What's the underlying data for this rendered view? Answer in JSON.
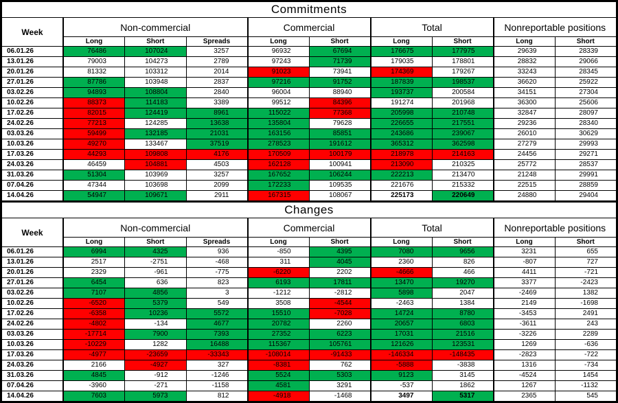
{
  "colors": {
    "positive": "#00B050",
    "negative": "#FF0000",
    "grid": "#000000",
    "text": "#000000",
    "background": "#FFFFFF"
  },
  "color_rule": {
    "threshold": 4000,
    "colored_columns": 7
  },
  "headers": {
    "week": "Week",
    "groups": [
      {
        "label": "Non-commercial",
        "subcols": [
          "Long",
          "Short",
          "Spreads"
        ]
      },
      {
        "label": "Commercial",
        "subcols": [
          "Long",
          "Short"
        ]
      },
      {
        "label": "Total",
        "subcols": [
          "Long",
          "Short"
        ]
      },
      {
        "label": "Nonreportable positions",
        "subcols": [
          "Long",
          "Short"
        ]
      }
    ]
  },
  "commitments": {
    "title": "Commitments",
    "rows": [
      {
        "week": "06.01.26",
        "values": [
          76486,
          107024,
          3257,
          96932,
          67694,
          176675,
          177975,
          29639,
          28339
        ]
      },
      {
        "week": "13.01.26",
        "values": [
          79003,
          104273,
          2789,
          97243,
          71739,
          179035,
          178801,
          28832,
          29066
        ]
      },
      {
        "week": "20.01.26",
        "values": [
          81332,
          103312,
          2014,
          91023,
          73941,
          174369,
          179267,
          33243,
          28345
        ]
      },
      {
        "week": "27.01.26",
        "values": [
          87786,
          103948,
          2837,
          97216,
          91752,
          187839,
          198537,
          36620,
          25922
        ]
      },
      {
        "week": "03.02.26",
        "values": [
          94893,
          108804,
          2840,
          96004,
          88940,
          193737,
          200584,
          34151,
          27304
        ]
      },
      {
        "week": "10.02.26",
        "values": [
          88373,
          114183,
          3389,
          99512,
          84396,
          191274,
          201968,
          36300,
          25606
        ]
      },
      {
        "week": "17.02.26",
        "values": [
          82015,
          124419,
          8961,
          115022,
          77368,
          205998,
          210748,
          32847,
          28097
        ]
      },
      {
        "week": "24.02.26",
        "values": [
          77213,
          124285,
          13638,
          135804,
          79628,
          226655,
          217551,
          29236,
          28340
        ]
      },
      {
        "week": "03.03.26",
        "values": [
          59499,
          132185,
          21031,
          163156,
          85851,
          243686,
          239067,
          26010,
          30629
        ]
      },
      {
        "week": "10.03.26",
        "values": [
          49270,
          133467,
          37519,
          278523,
          191612,
          365312,
          362598,
          27279,
          29993
        ]
      },
      {
        "week": "17.03.26",
        "values": [
          44293,
          109808,
          4176,
          170509,
          100179,
          218978,
          214163,
          24456,
          29271
        ]
      },
      {
        "week": "24.03.26",
        "values": [
          46459,
          104881,
          4503,
          162128,
          100941,
          213090,
          210325,
          25772,
          28537
        ]
      },
      {
        "week": "31.03.26",
        "values": [
          51304,
          103969,
          3257,
          167652,
          106244,
          222213,
          213470,
          21248,
          29991
        ]
      },
      {
        "week": "07.04.26",
        "values": [
          47344,
          103698,
          2099,
          172233,
          109535,
          221676,
          215332,
          22515,
          28859
        ]
      },
      {
        "week": "14.04.26",
        "values": [
          54947,
          109671,
          2911,
          167315,
          108067,
          225173,
          220649,
          24880,
          29404
        ]
      }
    ]
  },
  "changes": {
    "title": "Changes",
    "rows": [
      {
        "week": "06.01.26",
        "values": [
          6994,
          4325,
          936,
          -850,
          4395,
          7080,
          9656,
          3231,
          655
        ]
      },
      {
        "week": "13.01.26",
        "values": [
          2517,
          -2751,
          -468,
          311,
          4045,
          2360,
          826,
          -807,
          727
        ]
      },
      {
        "week": "20.01.26",
        "values": [
          2329,
          -961,
          -775,
          -6220,
          2202,
          -4666,
          466,
          4411,
          -721
        ]
      },
      {
        "week": "27.01.26",
        "values": [
          6454,
          636,
          823,
          6193,
          17811,
          13470,
          19270,
          3377,
          -2423
        ]
      },
      {
        "week": "03.02.26",
        "values": [
          7107,
          4856,
          3,
          -1212,
          -2812,
          5898,
          2047,
          -2469,
          1382
        ]
      },
      {
        "week": "10.02.26",
        "values": [
          -6520,
          5379,
          549,
          3508,
          -4544,
          -2463,
          1384,
          2149,
          -1698
        ]
      },
      {
        "week": "17.02.26",
        "values": [
          -6358,
          10236,
          5572,
          15510,
          -7028,
          14724,
          8780,
          -3453,
          2491
        ]
      },
      {
        "week": "24.02.26",
        "values": [
          -4802,
          -134,
          4677,
          20782,
          2260,
          20657,
          6803,
          -3611,
          243
        ]
      },
      {
        "week": "03.03.26",
        "values": [
          -17714,
          7900,
          7393,
          27352,
          6223,
          17031,
          21516,
          -3226,
          2289
        ]
      },
      {
        "week": "10.03.26",
        "values": [
          -10229,
          1282,
          16488,
          115367,
          105761,
          121626,
          123531,
          1269,
          -636
        ]
      },
      {
        "week": "17.03.26",
        "values": [
          -4977,
          -23659,
          -33343,
          -108014,
          -91433,
          -146334,
          -148435,
          -2823,
          -722
        ]
      },
      {
        "week": "24.03.26",
        "values": [
          2166,
          -4927,
          327,
          -8381,
          762,
          -5888,
          -3838,
          1316,
          -734
        ]
      },
      {
        "week": "31.03.26",
        "values": [
          4845,
          -912,
          -1246,
          5524,
          5303,
          9123,
          3145,
          -4524,
          1454
        ]
      },
      {
        "week": "07.04.26",
        "values": [
          -3960,
          -271,
          -1158,
          4581,
          3291,
          -537,
          1862,
          1267,
          -1132
        ]
      },
      {
        "week": "14.04.26",
        "values": [
          7603,
          5973,
          812,
          -4918,
          -1468,
          3497,
          5317,
          2365,
          545
        ]
      }
    ]
  }
}
